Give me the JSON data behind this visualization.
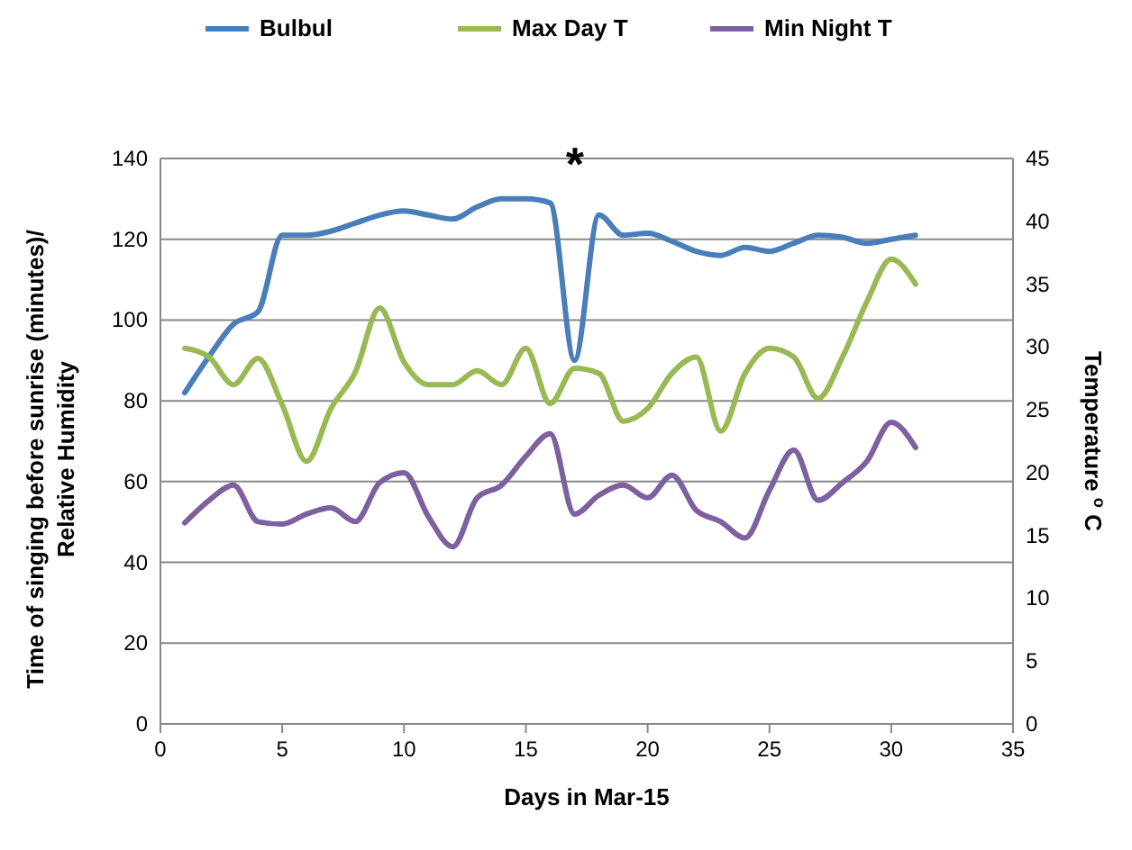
{
  "chart_data": {
    "type": "line",
    "xlabel": "Days in Mar-15",
    "ylabel": "Time of singing before sunrise (minutes)/\nRelative Humidity",
    "y2label": "Temperature $^{o}$ C",
    "x": [
      1,
      2,
      3,
      4,
      5,
      6,
      7,
      8,
      9,
      10,
      11,
      12,
      13,
      14,
      15,
      16,
      17,
      18,
      19,
      20,
      21,
      22,
      23,
      24,
      25,
      26,
      27,
      28,
      29,
      30,
      31
    ],
    "series": [
      {
        "name": "Bulbul",
        "color": "#4a7ebb",
        "values": [
          82,
          91,
          99,
          102,
          121,
          121,
          122,
          124,
          126,
          127,
          126,
          125,
          128,
          130,
          130,
          129,
          90,
          126,
          121,
          121.5,
          119.5,
          117,
          116,
          118,
          117,
          119,
          121,
          120.5,
          119,
          120,
          121
        ]
      },
      {
        "name": "Max Day T",
        "color": "#98b954",
        "axis": "y2",
        "values": [
          29.9,
          29.2,
          27,
          29.1,
          25.4,
          20.9,
          25.1,
          28,
          33.1,
          28.8,
          27,
          27,
          28.1,
          27,
          29.9,
          25.5,
          28.3,
          27.9,
          24.1,
          25.1,
          27.9,
          29.2,
          23.3,
          27.9,
          29.9,
          29.2,
          25.9,
          29.2,
          33.6,
          37,
          35
        ]
      },
      {
        "name": "Min Night T",
        "color": "#7d60a0",
        "axis": "y2",
        "values": [
          16,
          17.8,
          19,
          16.1,
          15.9,
          16.7,
          17.2,
          16.1,
          19.2,
          20,
          16.5,
          14.1,
          18,
          19,
          21.3,
          23.1,
          16.7,
          18.2,
          19,
          18,
          19.8,
          17,
          16.1,
          14.8,
          18.6,
          21.8,
          17.8,
          19.2,
          20.9,
          24,
          22
        ]
      }
    ],
    "xlim": [
      0,
      35
    ],
    "xticks": [
      0,
      5,
      10,
      15,
      20,
      25,
      30,
      35
    ],
    "ylim": [
      0,
      140
    ],
    "yticks": [
      0,
      20,
      40,
      60,
      80,
      100,
      120,
      140
    ],
    "y2lim": [
      0,
      45
    ],
    "y2ticks": [
      0,
      5,
      10,
      15,
      20,
      25,
      30,
      35,
      40,
      45
    ],
    "annotations": [
      "*"
    ],
    "grid": "y",
    "legend": "top",
    "marker": "none",
    "line_style": "solid"
  }
}
